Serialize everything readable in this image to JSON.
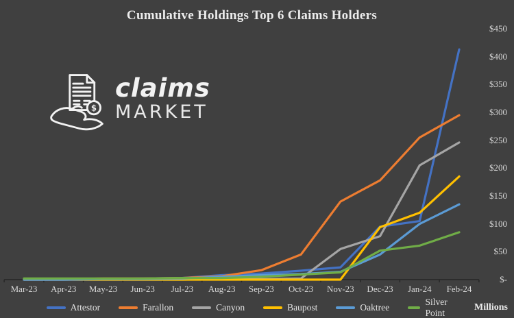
{
  "logo": {
    "icon": "document-dollar-in-hand-icon",
    "line1": "claims",
    "line2": "MARKET"
  },
  "chart_data": {
    "type": "line",
    "title": "Cumulative Holdings Top 6 Claims Holders",
    "unit_label": "Millions",
    "categories": [
      "Mar-23",
      "Apr-23",
      "May-23",
      "Jun-23",
      "Jul-23",
      "Aug-23",
      "Sep-23",
      "Oct-23",
      "Nov-23",
      "Dec-23",
      "Jan-24",
      "Feb-24"
    ],
    "series": [
      {
        "name": "Attestor",
        "color": "#4472C4",
        "values": [
          0,
          0,
          1,
          2,
          3,
          8,
          11,
          16,
          22,
          95,
          105,
          413
        ]
      },
      {
        "name": "Farallon",
        "color": "#ED7D31",
        "values": [
          1,
          1,
          2,
          2,
          3,
          6,
          17,
          45,
          140,
          178,
          255,
          295
        ]
      },
      {
        "name": "Canyon",
        "color": "#A5A5A5",
        "values": [
          0,
          0,
          0,
          0,
          0,
          1,
          1,
          2,
          55,
          78,
          205,
          246
        ]
      },
      {
        "name": "Baupost",
        "color": "#FFC000",
        "values": [
          0,
          0,
          0,
          0,
          0,
          0,
          0,
          0,
          0,
          94,
          120,
          185
        ]
      },
      {
        "name": "Oaktree",
        "color": "#5B9BD5",
        "values": [
          0,
          0,
          1,
          1,
          2,
          5,
          8,
          10,
          14,
          45,
          100,
          135
        ]
      },
      {
        "name": "Silver Point",
        "color": "#70AD47",
        "values": [
          2,
          2,
          2,
          2,
          3,
          3,
          5,
          9,
          13,
          52,
          61,
          85
        ]
      }
    ],
    "y_ticks": [
      "$-",
      "$50",
      "$100",
      "$150",
      "$200",
      "$250",
      "$300",
      "$350",
      "$400",
      "$450"
    ],
    "y_tick_step": 50,
    "ylim": [
      0,
      450
    ],
    "grid": false,
    "legend_position": "bottom",
    "colors": {
      "background": "#404040",
      "axis_line": "#262626",
      "tick_text": "#d6d6d6",
      "title_text": "#ececec"
    }
  }
}
